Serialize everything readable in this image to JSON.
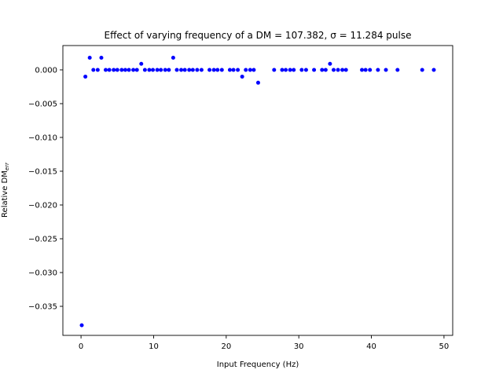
{
  "chart_data": {
    "type": "scatter",
    "title": "Effect of varying frequency of a DM = 107.382, σ = 11.284 pulse",
    "xlabel": "Input Frequency (Hz)",
    "ylabel_main": "Relative DM",
    "ylabel_subscript": "err",
    "xlim": [
      -2.5,
      51.2
    ],
    "ylim": [
      -0.0393,
      0.0036
    ],
    "xticks": [
      0,
      10,
      20,
      30,
      40,
      50
    ],
    "xtick_labels": [
      "0",
      "10",
      "20",
      "30",
      "40",
      "50"
    ],
    "yticks": [
      0.0,
      -0.005,
      -0.01,
      -0.015,
      -0.02,
      -0.025,
      -0.03,
      -0.035
    ],
    "ytick_labels": [
      "0.000",
      "−0.005",
      "−0.010",
      "−0.015",
      "−0.020",
      "−0.025",
      "−0.030",
      "−0.035"
    ],
    "grid": false,
    "marker_color": "#0000ff",
    "series": [
      {
        "points": [
          [
            0.1,
            -0.0378
          ],
          [
            0.6,
            -0.001
          ],
          [
            1.2,
            0.0018
          ],
          [
            1.7,
            0.0
          ],
          [
            2.3,
            0.0
          ],
          [
            2.8,
            0.0018
          ],
          [
            3.4,
            0.0
          ],
          [
            3.9,
            0.0
          ],
          [
            4.5,
            0.0
          ],
          [
            5.0,
            0.0
          ],
          [
            5.6,
            0.0
          ],
          [
            6.1,
            0.0
          ],
          [
            6.6,
            0.0
          ],
          [
            7.2,
            0.0
          ],
          [
            7.7,
            0.0
          ],
          [
            8.3,
            0.0009
          ],
          [
            8.8,
            0.0
          ],
          [
            9.4,
            0.0
          ],
          [
            9.9,
            0.0
          ],
          [
            10.5,
            0.0
          ],
          [
            11.0,
            0.0
          ],
          [
            11.6,
            0.0
          ],
          [
            12.1,
            0.0
          ],
          [
            12.7,
            0.0018
          ],
          [
            13.2,
            0.0
          ],
          [
            13.8,
            0.0
          ],
          [
            14.3,
            0.0
          ],
          [
            14.9,
            0.0
          ],
          [
            15.4,
            0.0
          ],
          [
            16.0,
            0.0
          ],
          [
            16.6,
            0.0
          ],
          [
            17.7,
            0.0
          ],
          [
            18.3,
            0.0
          ],
          [
            18.8,
            0.0
          ],
          [
            19.4,
            0.0
          ],
          [
            20.5,
            0.0
          ],
          [
            21.0,
            0.0
          ],
          [
            21.6,
            0.0
          ],
          [
            22.2,
            -0.001
          ],
          [
            22.7,
            0.0
          ],
          [
            23.3,
            0.0
          ],
          [
            23.8,
            0.0
          ],
          [
            24.4,
            -0.0019
          ],
          [
            26.6,
            0.0
          ],
          [
            27.7,
            0.0
          ],
          [
            28.2,
            0.0
          ],
          [
            28.8,
            0.0
          ],
          [
            29.3,
            0.0
          ],
          [
            30.4,
            0.0
          ],
          [
            31.0,
            0.0
          ],
          [
            32.1,
            0.0
          ],
          [
            33.2,
            0.0
          ],
          [
            33.7,
            0.0
          ],
          [
            34.3,
            0.0009
          ],
          [
            34.8,
            0.0
          ],
          [
            35.4,
            0.0
          ],
          [
            36.0,
            0.0
          ],
          [
            36.5,
            0.0
          ],
          [
            38.7,
            0.0
          ],
          [
            39.2,
            0.0
          ],
          [
            39.8,
            0.0
          ],
          [
            40.9,
            0.0
          ],
          [
            42.0,
            0.0
          ],
          [
            43.6,
            0.0
          ],
          [
            47.0,
            0.0
          ],
          [
            48.6,
            0.0
          ]
        ]
      }
    ]
  }
}
